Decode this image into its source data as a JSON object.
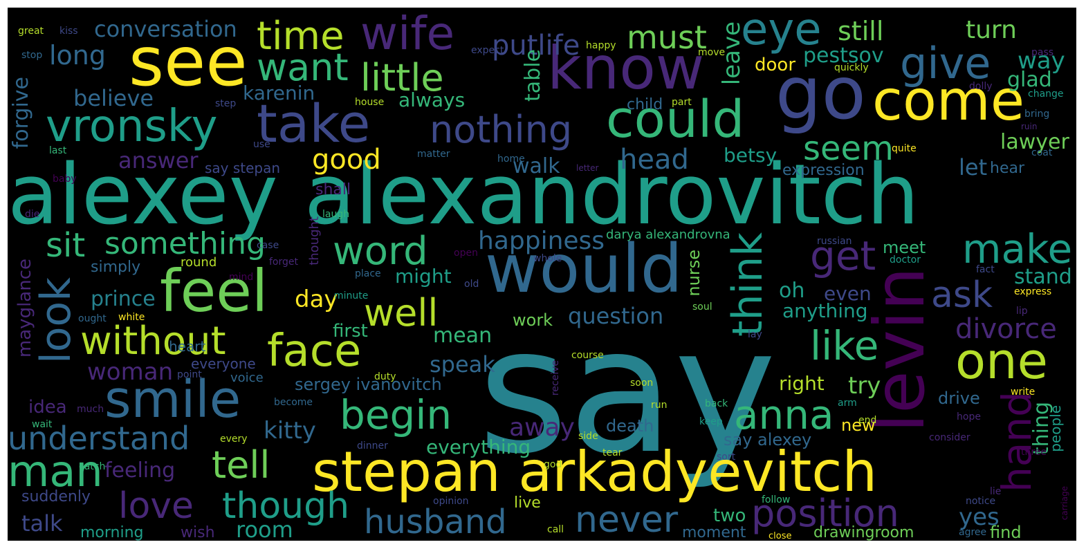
{
  "palette": {
    "yellow": "#fde725",
    "lime": "#b5de2b",
    "green": "#6ece58",
    "seagreen": "#35b779",
    "teal": "#1f9e89",
    "cyan": "#26828e",
    "steel": "#31688e",
    "slate": "#3e4989",
    "indigo": "#482878",
    "purple": "#440154",
    "background": "#000000"
  },
  "words": [
    {
      "text": "say",
      "color": "cyan"
    },
    {
      "text": "alexey alexandrovitch",
      "color": "teal"
    },
    {
      "text": "know",
      "color": "indigo"
    },
    {
      "text": "see",
      "color": "yellow"
    },
    {
      "text": "go",
      "color": "slate"
    },
    {
      "text": "would",
      "color": "steel"
    },
    {
      "text": "stepan arkadyevitch",
      "color": "yellow"
    },
    {
      "text": "come",
      "color": "yellow"
    },
    {
      "text": "wife",
      "color": "indigo"
    },
    {
      "text": "eye",
      "color": "cyan"
    },
    {
      "text": "could",
      "color": "seagreen"
    },
    {
      "text": "take",
      "color": "slate"
    },
    {
      "text": "levin",
      "color": "purple"
    },
    {
      "text": "think",
      "color": "teal"
    },
    {
      "text": "feel",
      "color": "green"
    },
    {
      "text": "smile",
      "color": "steel"
    },
    {
      "text": "one",
      "color": "lime"
    },
    {
      "text": "look",
      "color": "steel"
    },
    {
      "text": "vronsky",
      "color": "teal"
    },
    {
      "text": "hand",
      "color": "purple"
    },
    {
      "text": "time",
      "color": "lime"
    },
    {
      "text": "give",
      "color": "steel"
    },
    {
      "text": "face",
      "color": "lime"
    },
    {
      "text": "make",
      "color": "teal"
    },
    {
      "text": "nothing",
      "color": "slate"
    },
    {
      "text": "little",
      "color": "green"
    },
    {
      "text": "want",
      "color": "seagreen"
    },
    {
      "text": "well",
      "color": "lime"
    },
    {
      "text": "without",
      "color": "lime"
    },
    {
      "text": "begin",
      "color": "seagreen"
    },
    {
      "text": "man",
      "color": "seagreen"
    },
    {
      "text": "anna",
      "color": "seagreen"
    },
    {
      "text": "must",
      "color": "green"
    },
    {
      "text": "like",
      "color": "seagreen"
    },
    {
      "text": "get",
      "color": "indigo"
    },
    {
      "text": "word",
      "color": "seagreen"
    },
    {
      "text": "tell",
      "color": "green"
    },
    {
      "text": "sit",
      "color": "seagreen"
    },
    {
      "text": "something",
      "color": "seagreen"
    },
    {
      "text": "position",
      "color": "indigo"
    },
    {
      "text": "husband",
      "color": "steel"
    },
    {
      "text": "understand",
      "color": "steel"
    },
    {
      "text": "ask",
      "color": "slate"
    },
    {
      "text": "love",
      "color": "indigo"
    },
    {
      "text": "though",
      "color": "teal"
    },
    {
      "text": "never",
      "color": "steel"
    },
    {
      "text": "putlife",
      "color": "slate"
    },
    {
      "text": "seem",
      "color": "seagreen"
    },
    {
      "text": "good",
      "color": "yellow"
    },
    {
      "text": "head",
      "color": "steel"
    },
    {
      "text": "still",
      "color": "green"
    },
    {
      "text": "turn",
      "color": "green"
    },
    {
      "text": "long",
      "color": "steel"
    },
    {
      "text": "conversation",
      "color": "steel"
    },
    {
      "text": "divorce",
      "color": "indigo"
    },
    {
      "text": "happiness",
      "color": "steel"
    },
    {
      "text": "believe",
      "color": "steel"
    },
    {
      "text": "kitty",
      "color": "steel"
    },
    {
      "text": "way",
      "color": "teal"
    },
    {
      "text": "glad",
      "color": "seagreen"
    },
    {
      "text": "pestsov",
      "color": "teal"
    },
    {
      "text": "karenin",
      "color": "steel"
    },
    {
      "text": "woman",
      "color": "indigo"
    },
    {
      "text": "question",
      "color": "steel"
    },
    {
      "text": "speak",
      "color": "steel"
    },
    {
      "text": "away",
      "color": "indigo"
    },
    {
      "text": "answer",
      "color": "indigo"
    },
    {
      "text": "always",
      "color": "seagreen"
    },
    {
      "text": "table",
      "color": "seagreen"
    },
    {
      "text": "leave",
      "color": "seagreen"
    },
    {
      "text": "door",
      "color": "yellow"
    },
    {
      "text": "betsy",
      "color": "teal"
    },
    {
      "text": "let",
      "color": "steel"
    },
    {
      "text": "lawyer",
      "color": "green"
    },
    {
      "text": "walk",
      "color": "steel"
    },
    {
      "text": "mean",
      "color": "seagreen"
    },
    {
      "text": "day",
      "color": "yellow"
    },
    {
      "text": "might",
      "color": "teal"
    },
    {
      "text": "prince",
      "color": "cyan"
    },
    {
      "text": "oh",
      "color": "teal"
    },
    {
      "text": "even",
      "color": "slate"
    },
    {
      "text": "anything",
      "color": "teal"
    },
    {
      "text": "stand",
      "color": "teal"
    },
    {
      "text": "meet",
      "color": "seagreen"
    },
    {
      "text": "right",
      "color": "lime"
    },
    {
      "text": "try",
      "color": "green"
    },
    {
      "text": "yes",
      "color": "steel"
    },
    {
      "text": "thing",
      "color": "seagreen"
    },
    {
      "text": "forgive",
      "color": "steel"
    },
    {
      "text": "everything",
      "color": "seagreen"
    },
    {
      "text": "first",
      "color": "seagreen"
    },
    {
      "text": "room",
      "color": "teal"
    },
    {
      "text": "talk",
      "color": "slate"
    },
    {
      "text": "feeling",
      "color": "indigo"
    },
    {
      "text": "death",
      "color": "steel"
    },
    {
      "text": "sergey ivanovitch",
      "color": "steel"
    },
    {
      "text": "say alexey",
      "color": "steel"
    },
    {
      "text": "drawingroom",
      "color": "green"
    },
    {
      "text": "drive",
      "color": "steel"
    },
    {
      "text": "two",
      "color": "seagreen"
    },
    {
      "text": "moment",
      "color": "steel"
    },
    {
      "text": "find",
      "color": "green"
    },
    {
      "text": "work",
      "color": "green"
    },
    {
      "text": "idea",
      "color": "indigo"
    },
    {
      "text": "simply",
      "color": "steel"
    },
    {
      "text": "nurse",
      "color": "green"
    },
    {
      "text": "say stepan",
      "color": "slate"
    },
    {
      "text": "expression",
      "color": "steel"
    },
    {
      "text": "hear",
      "color": "steel"
    },
    {
      "text": "darya alexandrovna",
      "color": "seagreen"
    },
    {
      "text": "shall",
      "color": "indigo"
    },
    {
      "text": "child",
      "color": "steel"
    },
    {
      "text": "people",
      "color": "teal"
    },
    {
      "text": "morning",
      "color": "teal"
    },
    {
      "text": "suddenly",
      "color": "slate"
    },
    {
      "text": "live",
      "color": "lime"
    },
    {
      "text": "mayglance",
      "color": "indigo"
    },
    {
      "text": "everyone",
      "color": "slate"
    },
    {
      "text": "new",
      "color": "yellow"
    },
    {
      "text": "wish",
      "color": "indigo"
    },
    {
      "text": "heart",
      "color": "steel"
    },
    {
      "text": "round",
      "color": "lime"
    },
    {
      "text": "thought",
      "color": "indigo"
    },
    {
      "text": "voice",
      "color": "steel"
    },
    {
      "text": "great",
      "color": "lime"
    },
    {
      "text": "kiss",
      "color": "slate"
    },
    {
      "text": "stop",
      "color": "steel"
    },
    {
      "text": "last",
      "color": "seagreen"
    },
    {
      "text": "baby",
      "color": "purple"
    },
    {
      "text": "happy",
      "color": "lime"
    },
    {
      "text": "expect",
      "color": "slate"
    },
    {
      "text": "move",
      "color": "lime"
    },
    {
      "text": "quickly",
      "color": "lime"
    },
    {
      "text": "pass",
      "color": "indigo"
    },
    {
      "text": "dolly",
      "color": "indigo"
    },
    {
      "text": "change",
      "color": "teal"
    },
    {
      "text": "bring",
      "color": "steel"
    },
    {
      "text": "ruin",
      "color": "indigo"
    },
    {
      "text": "coat",
      "color": "steel"
    },
    {
      "text": "quite",
      "color": "yellow"
    },
    {
      "text": "house",
      "color": "lime"
    },
    {
      "text": "step",
      "color": "slate"
    },
    {
      "text": "part",
      "color": "lime"
    },
    {
      "text": "use",
      "color": "slate"
    },
    {
      "text": "matter",
      "color": "steel"
    },
    {
      "text": "home",
      "color": "steel"
    },
    {
      "text": "letter",
      "color": "indigo"
    },
    {
      "text": "russian",
      "color": "slate"
    },
    {
      "text": "doctor",
      "color": "teal"
    },
    {
      "text": "fact",
      "color": "slate"
    },
    {
      "text": "express",
      "color": "yellow"
    },
    {
      "text": "lip",
      "color": "indigo"
    },
    {
      "text": "laugh",
      "color": "seagreen"
    },
    {
      "text": "die",
      "color": "indigo"
    },
    {
      "text": "case",
      "color": "slate"
    },
    {
      "text": "open",
      "color": "purple"
    },
    {
      "text": "whole",
      "color": "slate"
    },
    {
      "text": "mind",
      "color": "purple"
    },
    {
      "text": "forget",
      "color": "indigo"
    },
    {
      "text": "place",
      "color": "steel"
    },
    {
      "text": "old",
      "color": "slate"
    },
    {
      "text": "minute",
      "color": "teal"
    },
    {
      "text": "soul",
      "color": "green"
    },
    {
      "text": "ought",
      "color": "steel"
    },
    {
      "text": "white",
      "color": "yellow"
    },
    {
      "text": "course",
      "color": "lime"
    },
    {
      "text": "receive",
      "color": "indigo"
    },
    {
      "text": "lay",
      "color": "slate"
    },
    {
      "text": "point",
      "color": "slate"
    },
    {
      "text": "duty",
      "color": "lime"
    },
    {
      "text": "much",
      "color": "indigo"
    },
    {
      "text": "become",
      "color": "steel"
    },
    {
      "text": "soon",
      "color": "lime"
    },
    {
      "text": "run",
      "color": "lime"
    },
    {
      "text": "back",
      "color": "seagreen"
    },
    {
      "text": "arm",
      "color": "teal"
    },
    {
      "text": "write",
      "color": "yellow"
    },
    {
      "text": "wait",
      "color": "seagreen"
    },
    {
      "text": "every",
      "color": "lime"
    },
    {
      "text": "keep",
      "color": "teal"
    },
    {
      "text": "end",
      "color": "lime"
    },
    {
      "text": "hope",
      "color": "indigo"
    },
    {
      "text": "side",
      "color": "lime"
    },
    {
      "text": "consider",
      "color": "indigo"
    },
    {
      "text": "dinner",
      "color": "slate"
    },
    {
      "text": "tear",
      "color": "lime"
    },
    {
      "text": "god",
      "color": "lime"
    },
    {
      "text": "sort",
      "color": "slate"
    },
    {
      "text": "three",
      "color": "purple"
    },
    {
      "text": "catch",
      "color": "seagreen"
    },
    {
      "text": "opinion",
      "color": "slate"
    },
    {
      "text": "follow",
      "color": "seagreen"
    },
    {
      "text": "notice",
      "color": "slate"
    },
    {
      "text": "lie",
      "color": "indigo"
    },
    {
      "text": "carriage",
      "color": "purple"
    },
    {
      "text": "call",
      "color": "lime"
    },
    {
      "text": "close",
      "color": "yellow"
    },
    {
      "text": "agree",
      "color": "steel"
    }
  ]
}
